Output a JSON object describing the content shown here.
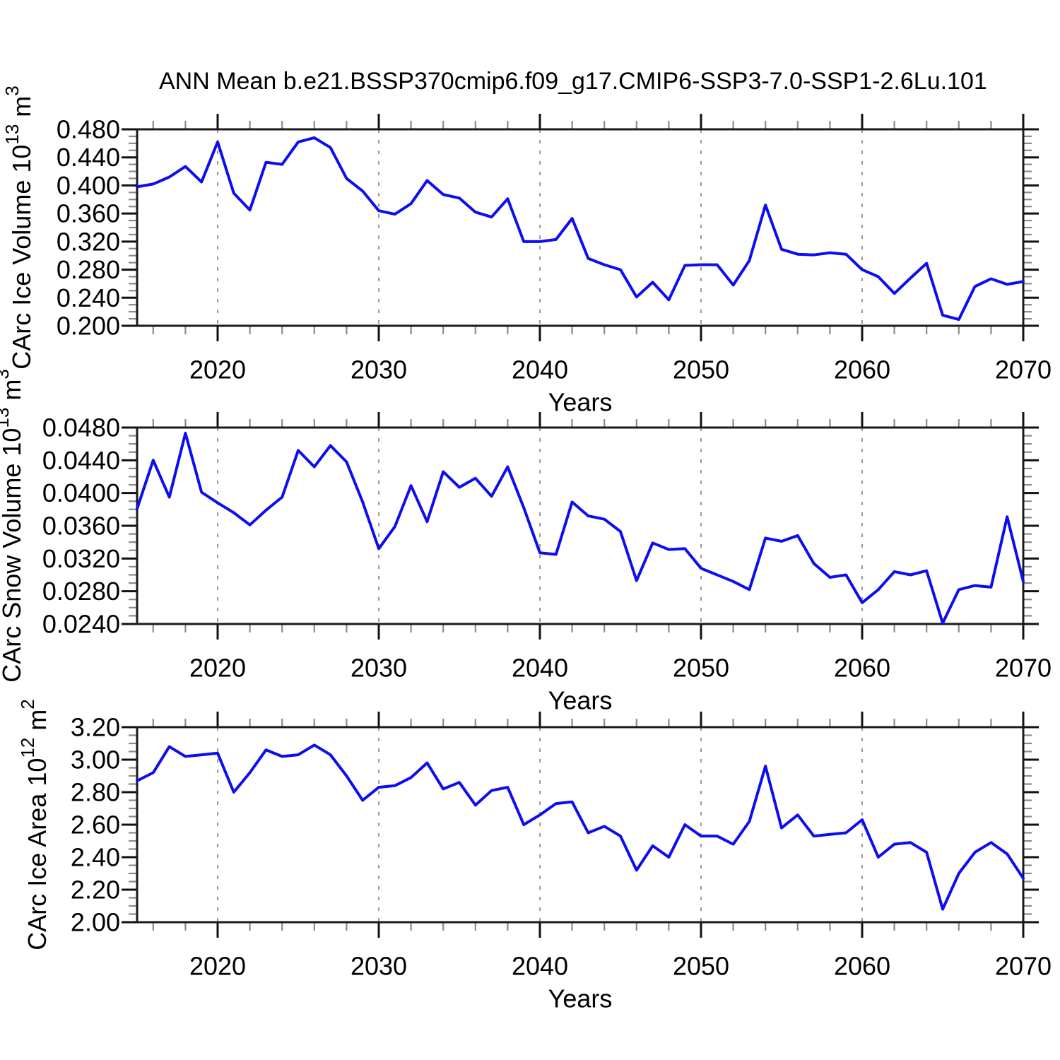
{
  "title": "ANN Mean b.e21.BSSP370cmip6.f09_g17.CMIP6-SSP3-7.0-SSP1-2.6Lu.101",
  "colors": {
    "line": "#0d0df0",
    "grid": "#999999",
    "axis": "#1a1a1a",
    "major_tick": "#111111",
    "minor_tick": "#8a8a8a",
    "background": "#ffffff",
    "text": "#000000"
  },
  "x_axis": {
    "label": "Years",
    "range": [
      2015,
      2070
    ],
    "major_ticks": [
      2020,
      2030,
      2040,
      2050,
      2060,
      2070
    ],
    "minor_step_years": 2,
    "gridline_years": [
      2020,
      2030,
      2040,
      2050,
      2060
    ],
    "grid_style": "dashed"
  },
  "chart_data": [
    {
      "type": "line",
      "name": "CArc Ice Volume",
      "ylabel_segments": [
        {
          "t": "CArc Ice Volume 10"
        },
        {
          "t": "13",
          "sup": true
        },
        {
          "t": " m"
        },
        {
          "t": "3",
          "sup": true
        }
      ],
      "ylim": [
        0.2,
        0.48
      ],
      "ytick_step": 0.04,
      "ytick_minor_step": 0.01,
      "ytick_decimals": 3,
      "x_start": 2015,
      "x_end": 2070,
      "values": [
        0.398,
        0.402,
        0.412,
        0.427,
        0.405,
        0.462,
        0.389,
        0.365,
        0.433,
        0.43,
        0.462,
        0.468,
        0.454,
        0.41,
        0.392,
        0.364,
        0.359,
        0.374,
        0.407,
        0.387,
        0.382,
        0.362,
        0.355,
        0.381,
        0.32,
        0.32,
        0.323,
        0.353,
        0.296,
        0.287,
        0.28,
        0.241,
        0.262,
        0.237,
        0.286,
        0.287,
        0.287,
        0.258,
        0.293,
        0.372,
        0.309,
        0.302,
        0.301,
        0.304,
        0.302,
        0.28,
        0.27,
        0.246,
        0.268,
        0.289,
        0.215,
        0.209,
        0.256,
        0.267,
        0.259,
        0.263
      ]
    },
    {
      "type": "line",
      "name": "CArc Snow Volume",
      "ylabel_segments": [
        {
          "t": "CArc Snow Volume 10"
        },
        {
          "t": "13",
          "sup": true
        },
        {
          "t": " m"
        },
        {
          "t": "3",
          "sup": true
        }
      ],
      "ylim": [
        0.024,
        0.048
      ],
      "ytick_step": 0.004,
      "ytick_minor_step": 0.001,
      "ytick_decimals": 4,
      "x_start": 2015,
      "x_end": 2070,
      "values": [
        0.0381,
        0.044,
        0.0395,
        0.0473,
        0.0401,
        0.0388,
        0.0376,
        0.0361,
        0.0379,
        0.0395,
        0.0452,
        0.0432,
        0.0458,
        0.0438,
        0.0389,
        0.0332,
        0.0359,
        0.0409,
        0.0365,
        0.0426,
        0.0407,
        0.0418,
        0.0396,
        0.0432,
        0.0382,
        0.0327,
        0.0325,
        0.0389,
        0.0372,
        0.0368,
        0.0353,
        0.0293,
        0.0339,
        0.0331,
        0.0332,
        0.0308,
        0.03,
        0.0292,
        0.0282,
        0.0345,
        0.0341,
        0.0348,
        0.0314,
        0.0297,
        0.03,
        0.0266,
        0.0282,
        0.0304,
        0.03,
        0.0305,
        0.0241,
        0.0282,
        0.0287,
        0.0285,
        0.0371,
        0.0292
      ]
    },
    {
      "type": "line",
      "name": "CArc Ice Area",
      "ylabel_segments": [
        {
          "t": "CArc Ice Area 10"
        },
        {
          "t": "12",
          "sup": true
        },
        {
          "t": " m"
        },
        {
          "t": "2",
          "sup": true
        }
      ],
      "ylim": [
        2.0,
        3.2
      ],
      "ytick_step": 0.2,
      "ytick_minor_step": 0.05,
      "ytick_decimals": 2,
      "x_start": 2015,
      "x_end": 2070,
      "values": [
        2.87,
        2.92,
        3.08,
        3.02,
        3.03,
        3.04,
        2.8,
        2.92,
        3.06,
        3.02,
        3.03,
        3.09,
        3.03,
        2.9,
        2.75,
        2.83,
        2.84,
        2.89,
        2.98,
        2.82,
        2.86,
        2.72,
        2.81,
        2.83,
        2.6,
        2.66,
        2.73,
        2.74,
        2.55,
        2.59,
        2.53,
        2.32,
        2.47,
        2.4,
        2.6,
        2.53,
        2.53,
        2.48,
        2.62,
        2.96,
        2.58,
        2.66,
        2.53,
        2.54,
        2.55,
        2.63,
        2.4,
        2.48,
        2.49,
        2.43,
        2.08,
        2.3,
        2.43,
        2.49,
        2.42,
        2.27
      ]
    }
  ]
}
